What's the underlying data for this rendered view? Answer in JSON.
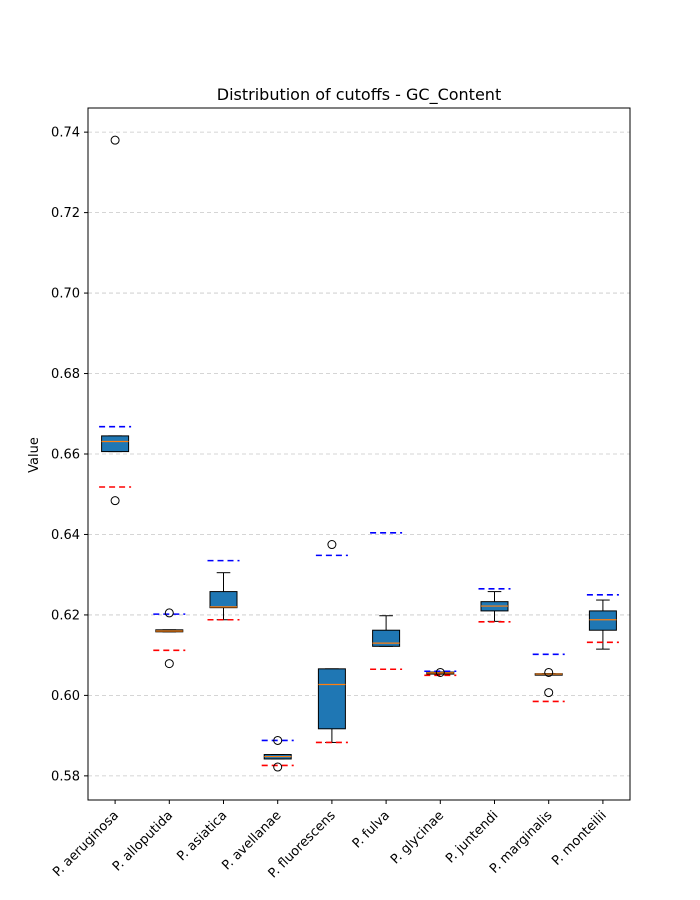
{
  "chart_data": {
    "type": "box",
    "title": "Distribution of cutoffs - GC_Content",
    "xlabel": "",
    "ylabel": "Value",
    "ylim": [
      0.574,
      0.746
    ],
    "yticks": [
      0.58,
      0.6,
      0.62,
      0.64,
      0.66,
      0.68,
      0.7,
      0.72,
      0.74
    ],
    "ytick_labels": [
      "0.58",
      "0.60",
      "0.62",
      "0.64",
      "0.66",
      "0.68",
      "0.70",
      "0.72",
      "0.74"
    ],
    "grid": "y-dashed",
    "box_color": "#1f77b4",
    "median_color": "#ff7f0e",
    "upper_cutoff_color": "#0000ff",
    "lower_cutoff_color": "#ff0000",
    "categories": [
      "P. aeruginosa",
      "P. alloputida",
      "P. asiatica",
      "P. avellanae",
      "P. fluorescens",
      "P. fulva",
      "P. glycinae",
      "P. juntendi",
      "P. marginalis",
      "P. monteilii"
    ],
    "boxes": [
      {
        "whisker_low": 0.6606,
        "q1": 0.6606,
        "median": 0.6631,
        "q3": 0.6645,
        "whisker_high": 0.6645,
        "outliers": [
          0.738,
          0.6484
        ],
        "upper_cutoff": 0.6668,
        "lower_cutoff": 0.6518
      },
      {
        "whisker_low": 0.6158,
        "q1": 0.6158,
        "median": 0.616,
        "q3": 0.6163,
        "whisker_high": 0.6163,
        "outliers": [
          0.6205,
          0.6079
        ],
        "upper_cutoff": 0.6202,
        "lower_cutoff": 0.6112
      },
      {
        "whisker_low": 0.6188,
        "q1": 0.6218,
        "median": 0.622,
        "q3": 0.6258,
        "whisker_high": 0.6305,
        "outliers": [],
        "upper_cutoff": 0.6335,
        "lower_cutoff": 0.6188
      },
      {
        "whisker_low": 0.5842,
        "q1": 0.5842,
        "median": 0.5848,
        "q3": 0.5853,
        "whisker_high": 0.5853,
        "outliers": [
          0.5888,
          0.5822
        ],
        "upper_cutoff": 0.5888,
        "lower_cutoff": 0.5826
      },
      {
        "whisker_low": 0.5883,
        "q1": 0.5917,
        "median": 0.6027,
        "q3": 0.6066,
        "whisker_high": 0.6066,
        "outliers": [
          0.6375
        ],
        "upper_cutoff": 0.6348,
        "lower_cutoff": 0.5883
      },
      {
        "whisker_low": 0.6122,
        "q1": 0.6122,
        "median": 0.613,
        "q3": 0.6162,
        "whisker_high": 0.6198,
        "outliers": [],
        "upper_cutoff": 0.6404,
        "lower_cutoff": 0.6065
      },
      {
        "whisker_low": 0.6053,
        "q1": 0.6053,
        "median": 0.6056,
        "q3": 0.6058,
        "whisker_high": 0.6058,
        "outliers": [
          0.6057
        ],
        "upper_cutoff": 0.606,
        "lower_cutoff": 0.605
      },
      {
        "whisker_low": 0.6184,
        "q1": 0.621,
        "median": 0.6222,
        "q3": 0.6233,
        "whisker_high": 0.6258,
        "outliers": [],
        "upper_cutoff": 0.6265,
        "lower_cutoff": 0.6183
      },
      {
        "whisker_low": 0.6053,
        "q1": 0.6053,
        "median": 0.6053,
        "q3": 0.6054,
        "whisker_high": 0.6054,
        "outliers": [
          0.6057,
          0.6007
        ],
        "upper_cutoff": 0.6102,
        "lower_cutoff": 0.5985
      },
      {
        "whisker_low": 0.6115,
        "q1": 0.6162,
        "median": 0.6188,
        "q3": 0.621,
        "whisker_high": 0.6237,
        "outliers": [],
        "upper_cutoff": 0.625,
        "lower_cutoff": 0.6132
      }
    ]
  }
}
